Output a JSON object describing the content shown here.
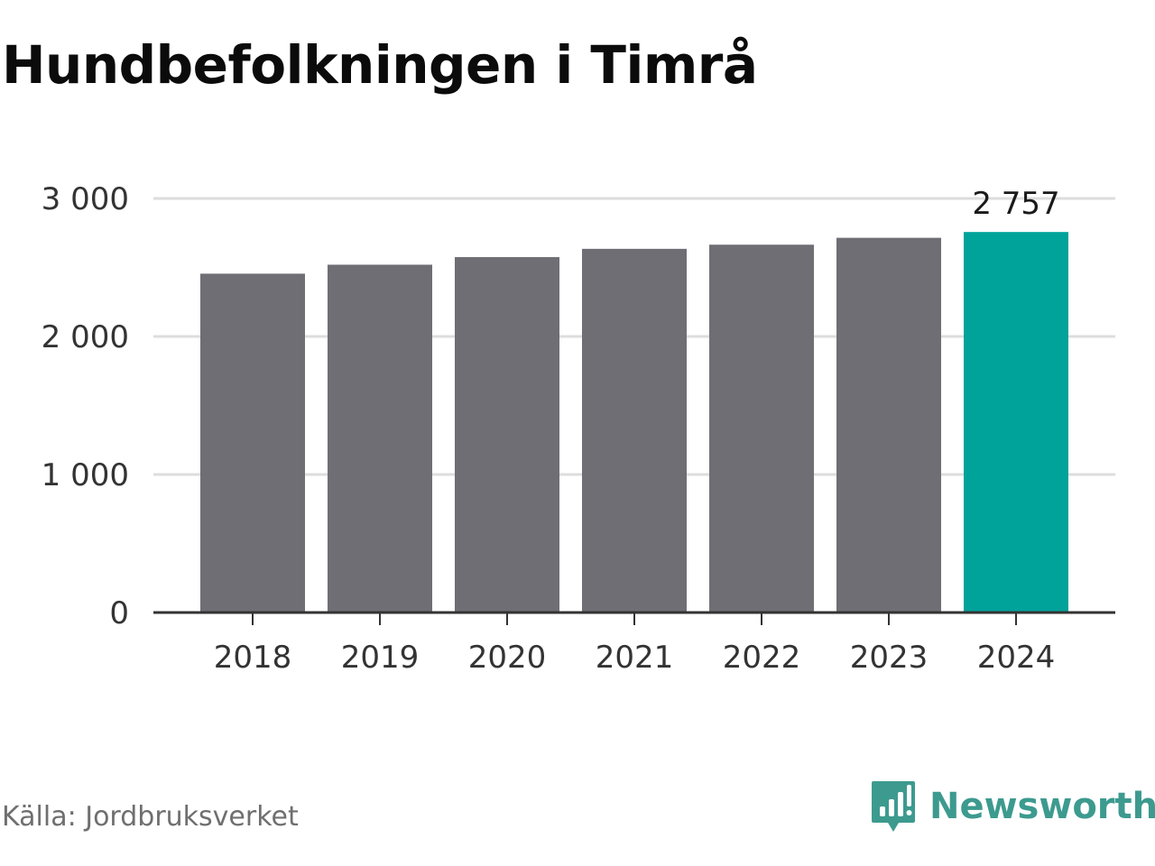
{
  "title": "Hundbefolkningen i Timrå",
  "source": "Källa: Jordbruksverket",
  "brand": {
    "name": "Newsworthy",
    "icon": "newsworthy-logo-icon",
    "color": "#3d9a8f"
  },
  "colors": {
    "bar": "#6f6e74",
    "highlight": "#00a39a",
    "grid": "#dddddd",
    "axis": "#333333"
  },
  "chart_data": {
    "type": "bar",
    "categories": [
      "2018",
      "2019",
      "2020",
      "2021",
      "2022",
      "2023",
      "2024"
    ],
    "values": [
      2455,
      2520,
      2575,
      2635,
      2665,
      2715,
      2757
    ],
    "highlight_index": 6,
    "data_labels": {
      "6": "2 757"
    },
    "ylim": [
      0,
      3000
    ],
    "yticks": [
      0,
      1000,
      2000,
      3000
    ],
    "ytick_labels": [
      "0",
      "1 000",
      "2 000",
      "3 000"
    ],
    "grid": true,
    "xlabel": "",
    "ylabel": ""
  }
}
